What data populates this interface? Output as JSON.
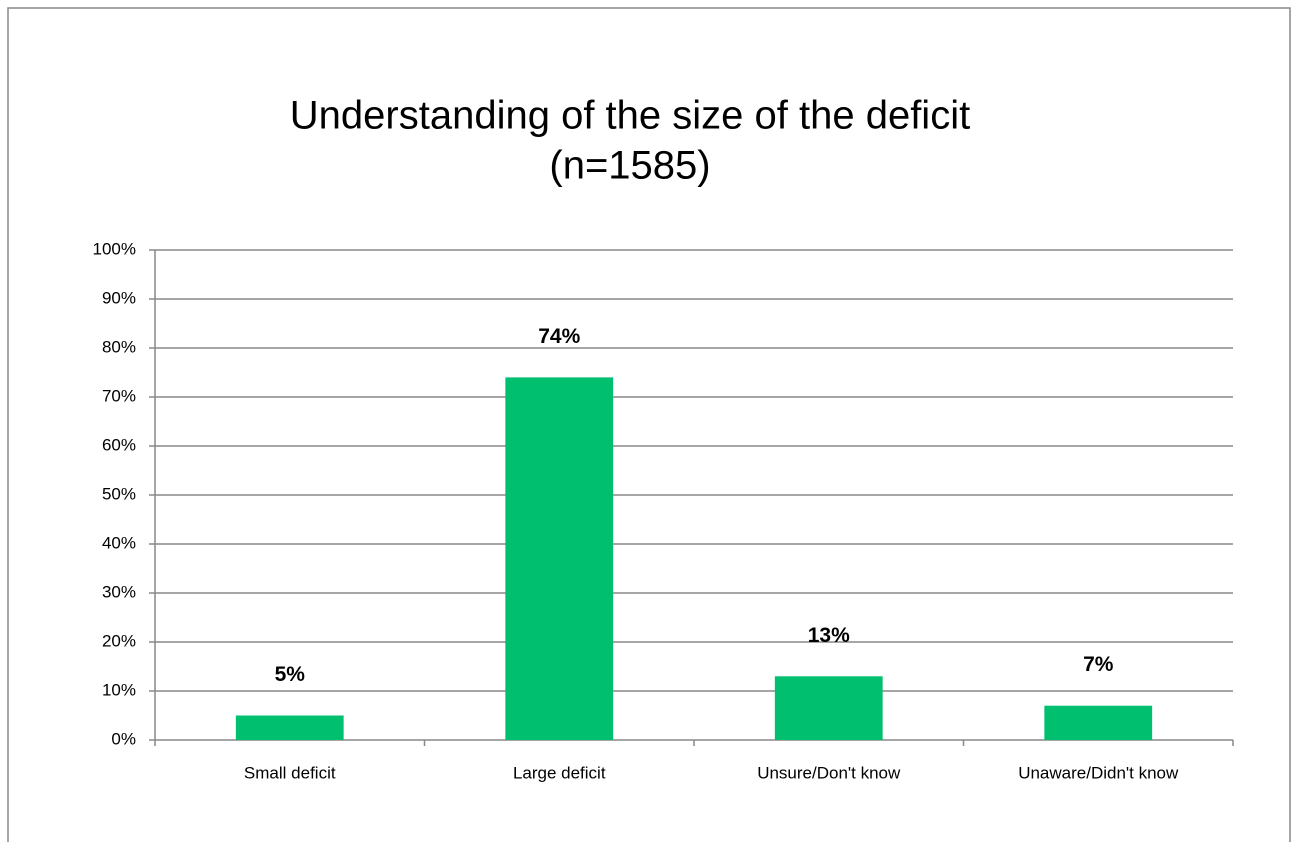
{
  "chart_data": {
    "type": "bar",
    "title": "Understanding of the size of the deficit",
    "subtitle": "(n=1585)",
    "categories": [
      "Small deficit",
      "Large deficit",
      "Unsure/Don't know",
      "Unaware/Didn't know"
    ],
    "values": [
      5,
      74,
      13,
      7
    ],
    "value_labels": [
      "5%",
      "74%",
      "13%",
      "7%"
    ],
    "color": "#00bf6f",
    "ylim": [
      0,
      100
    ],
    "yticks": [
      {
        "value": 0,
        "label": "0%"
      },
      {
        "value": 10,
        "label": "10%"
      },
      {
        "value": 20,
        "label": "20%"
      },
      {
        "value": 30,
        "label": "30%"
      },
      {
        "value": 40,
        "label": "40%"
      },
      {
        "value": 50,
        "label": "50%"
      },
      {
        "value": 60,
        "label": "60%"
      },
      {
        "value": 70,
        "label": "70%"
      },
      {
        "value": 80,
        "label": "80%"
      },
      {
        "value": 90,
        "label": "90%"
      },
      {
        "value": 100,
        "label": "100%"
      }
    ],
    "grid": true
  }
}
